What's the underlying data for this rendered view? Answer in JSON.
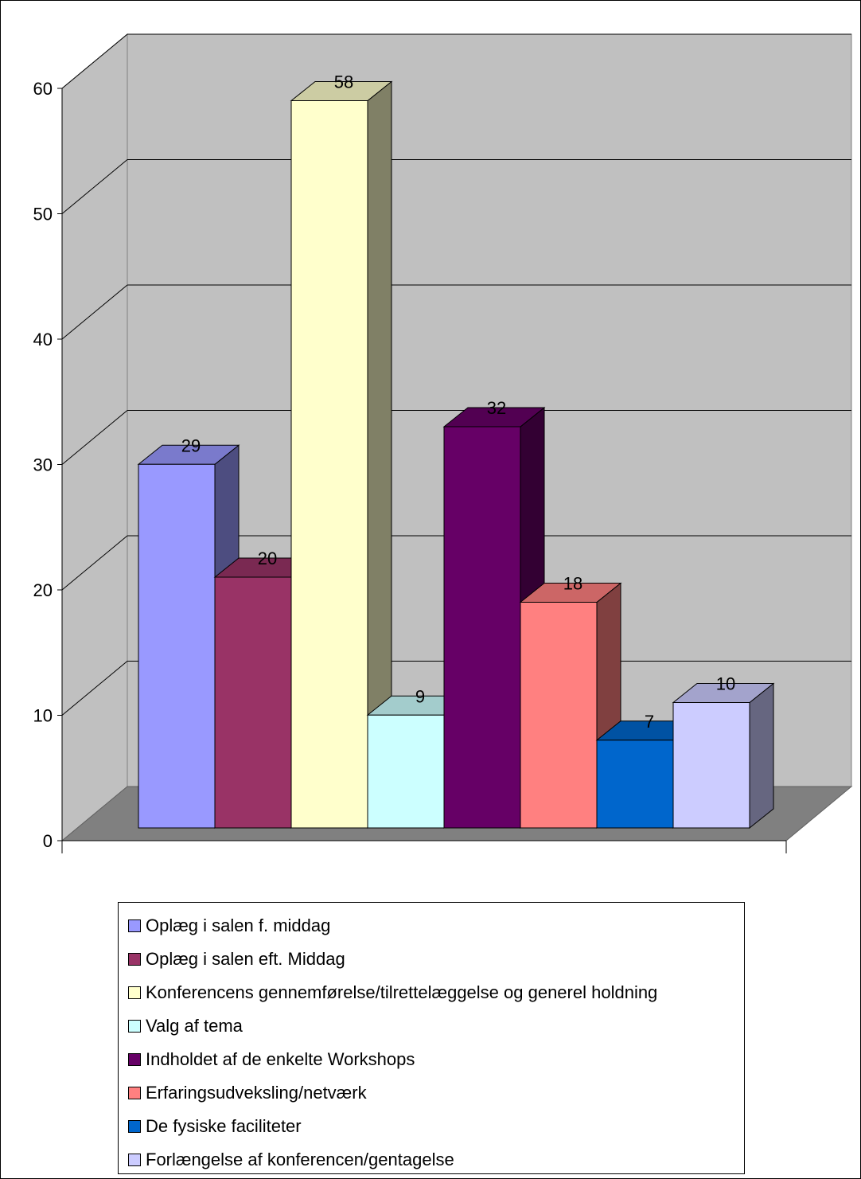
{
  "chart_data": {
    "type": "bar",
    "title": "",
    "xlabel": "",
    "ylabel": "",
    "ylim": [
      0,
      60
    ],
    "yticks": [
      0,
      10,
      20,
      30,
      40,
      50,
      60
    ],
    "grid": true,
    "legend_position": "bottom",
    "series": [
      {
        "name": "Oplæg i salen f. middag",
        "value": 29,
        "color": "#9999ff"
      },
      {
        "name": "Oplæg i salen eft. Middag",
        "value": 20,
        "color": "#993366"
      },
      {
        "name": "Konferencens gennemførelse/tilrettelæggelse og generel holdning",
        "value": 58,
        "color": "#ffffcc"
      },
      {
        "name": "Valg af tema",
        "value": 9,
        "color": "#ccffff"
      },
      {
        "name": "Indholdet af de enkelte Workshops",
        "value": 32,
        "color": "#660066"
      },
      {
        "name": "Erfaringsudveksling/netværk",
        "value": 18,
        "color": "#ff8080"
      },
      {
        "name": "De fysiske faciliteter",
        "value": 7,
        "color": "#0066cc"
      },
      {
        "name": "Forlængelse af konferencen/gentagelse",
        "value": 10,
        "color": "#ccccff"
      }
    ]
  }
}
